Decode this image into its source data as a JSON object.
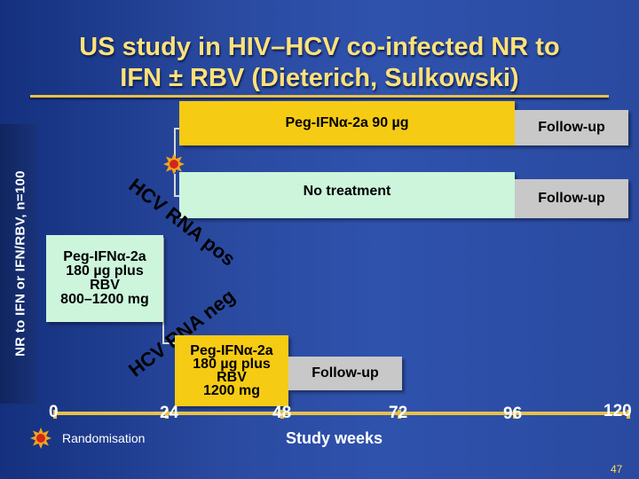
{
  "title": {
    "line1": "US study in HIV–HCV co-infected NR to",
    "line2": "IFN ± RBV (Dieterich, Sulkowski)"
  },
  "y_label": "NR to IFN or IFN/RBV, n=100",
  "treatment": {
    "line1": "Peg-IFNα-2a",
    "line2": "180 µg plus",
    "line3": "RBV",
    "line4": "800–1200 mg"
  },
  "branches": {
    "pos": "HCV RNA pos",
    "neg": "HCV RNA neg"
  },
  "upper_arm": {
    "label": "Peg-IFNα-2a 90 µg",
    "followup": "Follow-up"
  },
  "middle_arm": {
    "label": "No treatment",
    "followup": "Follow-up"
  },
  "lower_arm": {
    "line1": "Peg-IFNα-2a",
    "line2": "180 µg plus",
    "line3": "RBV",
    "line4": "1200 mg",
    "followup": "Follow-up"
  },
  "x_axis": {
    "label": "Study weeks",
    "ticks": [
      "0",
      "24",
      "48",
      "72",
      "96",
      "120"
    ]
  },
  "legend": {
    "randomisation": "Randomisation",
    "icon": "star-burst-icon"
  },
  "page_number": "47",
  "colors": {
    "background": "#2a4aa0",
    "title": "#ffe27a",
    "yellow": "#f6cb14",
    "green": "#ccf5dc",
    "grey": "#c8c8c8",
    "randomisation_icon": "#f7a21b"
  }
}
